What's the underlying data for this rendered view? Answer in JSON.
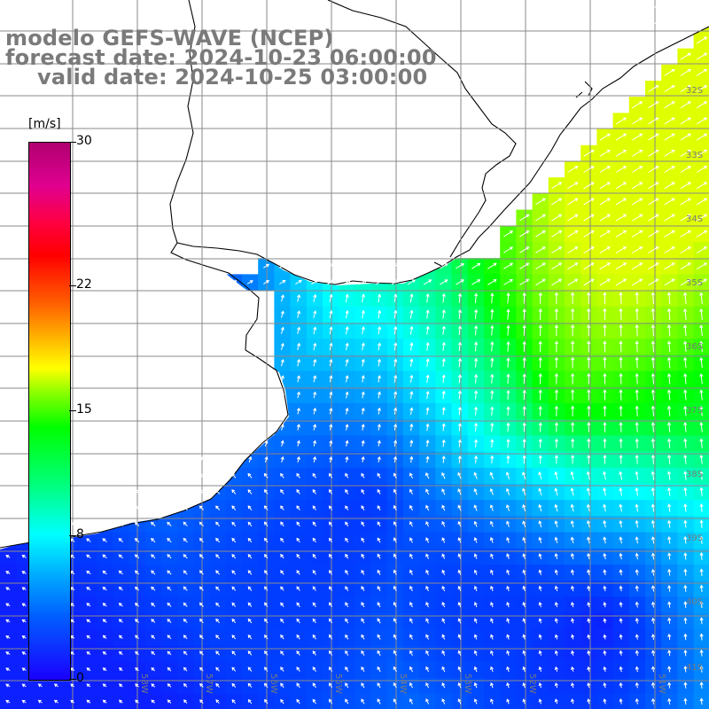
{
  "titles": {
    "model": "modelo GEFS-WAVE (NCEP)",
    "forecast": "forecast date: 2024-10-23 06:00:00",
    "valid": "valid date: 2024-10-25 03:00:00"
  },
  "colorbar": {
    "unit": "[m/s]",
    "ticks": [
      {
        "label": "30",
        "value": 30
      },
      {
        "label": "22",
        "value": 22
      },
      {
        "label": "15",
        "value": 15
      },
      {
        "label": "8",
        "value": 8
      },
      {
        "label": "0",
        "value": 0
      }
    ],
    "min": 0,
    "max": 30
  },
  "grid": {
    "lat_labels_right": [
      "32S",
      "33S",
      "34S",
      "35S",
      "36S",
      "37S",
      "38S",
      "39S",
      "40S",
      "41S"
    ],
    "lon_labels_bottom": [
      "58W",
      "57W",
      "56W",
      "55W",
      "54W",
      "53W",
      "52W",
      "51W"
    ]
  },
  "colors": {
    "land": "#ffffff",
    "coast": "#000000",
    "gridline": "#8a8a8a",
    "title": "#7a7a7a",
    "arrow": "#ffffff"
  }
}
